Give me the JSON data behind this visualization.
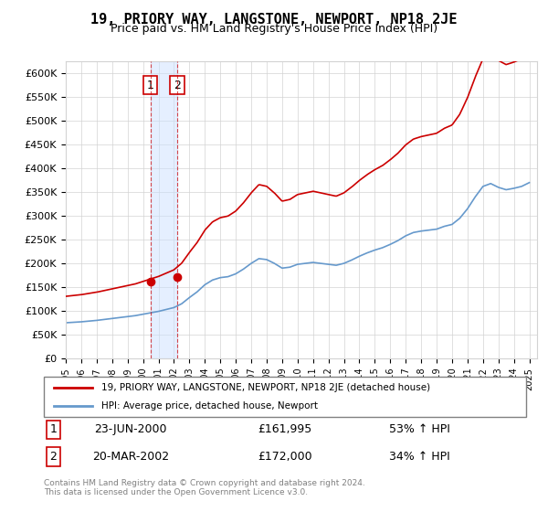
{
  "title": "19, PRIORY WAY, LANGSTONE, NEWPORT, NP18 2JE",
  "subtitle": "Price paid vs. HM Land Registry's House Price Index (HPI)",
  "legend_line1": "19, PRIORY WAY, LANGSTONE, NEWPORT, NP18 2JE (detached house)",
  "legend_line2": "HPI: Average price, detached house, Newport",
  "transaction1_date": "23-JUN-2000",
  "transaction1_price": 161995,
  "transaction1_label": "53% ↑ HPI",
  "transaction2_date": "20-MAR-2002",
  "transaction2_price": 172000,
  "transaction2_label": "34% ↑ HPI",
  "footer": "Contains HM Land Registry data © Crown copyright and database right 2024.\nThis data is licensed under the Open Government Licence v3.0.",
  "ylim": [
    0,
    625000
  ],
  "ytick_step": 50000,
  "color_property": "#cc0000",
  "color_hpi": "#6699cc",
  "color_transaction1": "#cc0000",
  "color_transaction2": "#cc0000",
  "transaction1_x": 2000.47,
  "transaction2_x": 2002.22
}
